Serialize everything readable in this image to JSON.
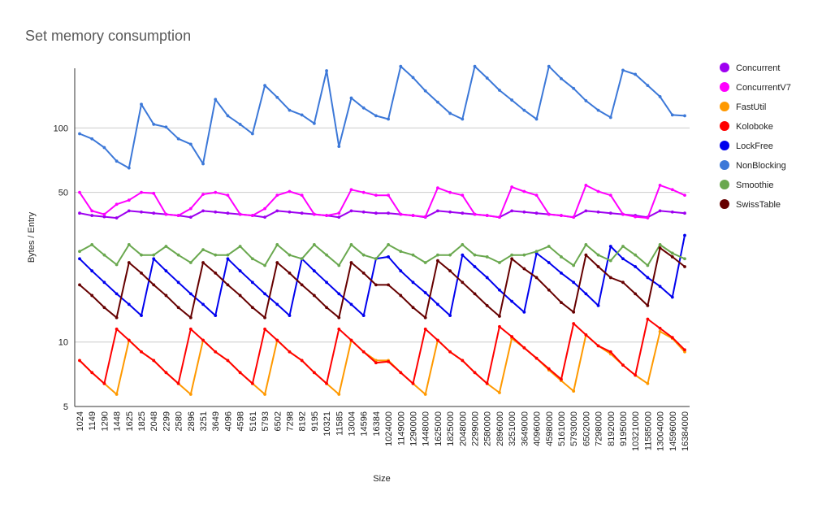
{
  "chart_data": {
    "type": "line",
    "title": "Set memory consumption",
    "xlabel": "Size",
    "ylabel": "Bytes / Entry",
    "yscale": "log",
    "ylim": [
      5,
      190
    ],
    "yticks": [
      5,
      10,
      50,
      100
    ],
    "grid": "horizontal at y ticks",
    "legend_position": "right",
    "categories": [
      "1024",
      "1149",
      "1290",
      "1448",
      "1625",
      "1825",
      "2048",
      "2299",
      "2580",
      "2896",
      "3251",
      "3649",
      "4096",
      "4598",
      "5161",
      "5793",
      "6502",
      "7298",
      "8192",
      "9195",
      "10321",
      "11585",
      "13004",
      "14596",
      "16384",
      "1024000",
      "1149000",
      "1290000",
      "1448000",
      "1625000",
      "1825000",
      "2048000",
      "2299000",
      "2580000",
      "2896000",
      "3251000",
      "3649000",
      "4096000",
      "4598000",
      "5161000",
      "5793000",
      "6502000",
      "7298000",
      "8192000",
      "9195000",
      "10321000",
      "11585000",
      "13004000",
      "14596000",
      "16384000"
    ],
    "series": [
      {
        "name": "Concurrent",
        "color": "#9e00f0",
        "values": [
          40,
          39,
          38.5,
          38,
          41,
          40.5,
          40,
          39.5,
          39,
          38.3,
          41,
          40.5,
          40,
          39.5,
          39,
          38.3,
          41,
          40.5,
          40,
          39.5,
          39,
          38.3,
          41,
          40.5,
          40,
          40,
          39.5,
          39,
          38.3,
          41,
          40.5,
          40,
          39.5,
          39,
          38.3,
          41,
          40.5,
          40,
          39.5,
          39,
          38.3,
          41,
          40.5,
          40,
          39.5,
          39,
          38.3,
          41,
          40.5,
          40
        ]
      },
      {
        "name": "ConcurrentV7",
        "color": "#ff00ff",
        "values": [
          50,
          41,
          39.5,
          44,
          46,
          50,
          49.5,
          39.5,
          39,
          42,
          49,
          50,
          48.5,
          39.5,
          39,
          42,
          48.5,
          50.5,
          48.5,
          39.5,
          39,
          40,
          51.5,
          50,
          48.5,
          48.5,
          39.5,
          39,
          38.5,
          52.5,
          50,
          48.5,
          39.5,
          39,
          38.3,
          53,
          50.5,
          48.5,
          39.5,
          39,
          38.3,
          54,
          50.5,
          48.5,
          39.5,
          38.5,
          38,
          54,
          51.5,
          48.5
        ]
      },
      {
        "name": "FastUtil",
        "color": "#ff9900",
        "values": [
          8.2,
          7.2,
          6.4,
          5.7,
          10.2,
          9,
          8.2,
          7.2,
          6.4,
          5.7,
          10.2,
          9,
          8.2,
          7.2,
          6.4,
          5.7,
          10.2,
          9,
          8.2,
          7.2,
          6.4,
          5.7,
          10.2,
          9,
          8.2,
          8.2,
          7.2,
          6.4,
          5.7,
          10.2,
          9,
          8.2,
          7.2,
          6.4,
          5.8,
          10.4,
          9.4,
          8.4,
          7.4,
          6.6,
          5.9,
          10.8,
          9.6,
          8.8,
          7.8,
          7,
          6.4,
          11.2,
          10.4,
          9
        ]
      },
      {
        "name": "Koloboke",
        "color": "#ff0000",
        "values": [
          8.2,
          7.2,
          6.4,
          11.5,
          10.2,
          9,
          8.2,
          7.2,
          6.4,
          11.5,
          10.2,
          9,
          8.2,
          7.2,
          6.4,
          11.5,
          10.2,
          9,
          8.2,
          7.2,
          6.4,
          11.5,
          10.2,
          9,
          8,
          8.1,
          7.2,
          6.4,
          11.5,
          10.2,
          9,
          8.2,
          7.2,
          6.4,
          11.8,
          10.6,
          9.4,
          8.4,
          7.5,
          6.7,
          12.2,
          10.8,
          9.6,
          9,
          7.8,
          7,
          12.8,
          11.6,
          10.5,
          9.2
        ]
      },
      {
        "name": "LockFree",
        "color": "#0000ee",
        "values": [
          24.5,
          21.5,
          19,
          16.8,
          15,
          13.3,
          24.5,
          21.5,
          19,
          16.8,
          15,
          13.3,
          24.5,
          21.5,
          19,
          16.8,
          15,
          13.3,
          24.5,
          21.5,
          19,
          16.8,
          15,
          13.3,
          24.5,
          25,
          21.5,
          19,
          17,
          15,
          13.3,
          25.5,
          22.5,
          20,
          17.5,
          15.5,
          13.8,
          26,
          23.5,
          21,
          19,
          16.8,
          14.8,
          28,
          24.5,
          22.5,
          20,
          18.2,
          16.2,
          31.5
        ]
      },
      {
        "name": "NonBlocking",
        "color": "#3c78d8",
        "values": [
          94,
          89,
          81,
          70,
          65,
          129,
          104,
          101,
          89,
          84,
          68,
          136,
          114,
          104,
          94,
          158,
          139,
          121,
          115,
          105,
          185,
          82,
          138,
          124,
          114,
          110,
          194,
          172,
          149,
          132,
          117,
          110,
          194,
          171,
          150,
          135,
          121,
          110,
          194,
          170,
          153,
          134,
          121,
          112,
          186,
          178,
          158,
          140,
          115,
          114
        ]
      },
      {
        "name": "Smoothie",
        "color": "#6aa84f",
        "values": [
          26.5,
          28.5,
          25.5,
          23,
          28.5,
          25.5,
          25.5,
          28,
          25.5,
          23.5,
          27,
          25.5,
          25.5,
          28,
          24.5,
          22.8,
          28.5,
          25.5,
          24.5,
          28.5,
          25.5,
          22.8,
          28.5,
          25.5,
          24.5,
          28.5,
          26.5,
          25.5,
          23.5,
          25.5,
          25.5,
          28.5,
          25.5,
          25,
          23.5,
          25.5,
          25.5,
          26.5,
          28,
          25,
          22.8,
          28.5,
          25.5,
          24,
          28,
          25.5,
          22.8,
          28.5,
          26,
          24.5
        ]
      },
      {
        "name": "SwissTable",
        "color": "#660000",
        "values": [
          18.5,
          16.5,
          14.5,
          13,
          23.5,
          21,
          18.5,
          16.5,
          14.5,
          13,
          23.5,
          21,
          18.5,
          16.5,
          14.5,
          13,
          23.5,
          21,
          18.5,
          16.5,
          14.5,
          13,
          23.5,
          21,
          18.5,
          18.5,
          16.5,
          14.5,
          13,
          24,
          21.5,
          19,
          16.8,
          14.8,
          13.2,
          24.5,
          22,
          20,
          17.5,
          15.3,
          13.8,
          25.5,
          22.5,
          20,
          19,
          16.8,
          14.8,
          27.5,
          25,
          22.5
        ]
      }
    ]
  }
}
